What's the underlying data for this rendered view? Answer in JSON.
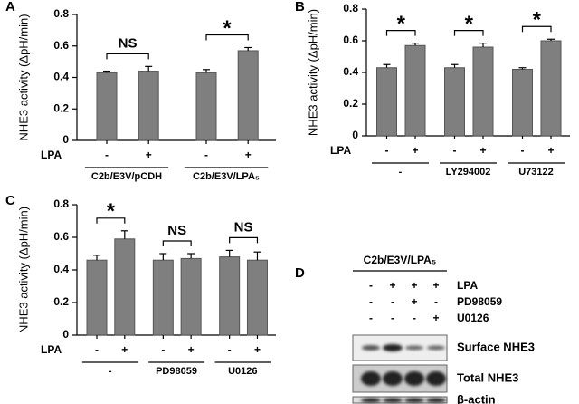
{
  "chart_data": [
    {
      "type": "bar",
      "panel": "A",
      "y_label": "NHE3 activity (ΔpH/min)",
      "row_label": "LPA",
      "color": "#7f7f7f",
      "categories": [
        "-",
        "+",
        "-",
        "+"
      ],
      "groups": [
        "C2b/E3V/pCDH",
        "C2b/E3V/LPA₅"
      ],
      "group_annotations": [
        "NS",
        "*"
      ],
      "values": [
        0.43,
        0.44,
        0.43,
        0.57
      ],
      "errors": [
        0.01,
        0.03,
        0.02,
        0.02
      ],
      "ylim": [
        0,
        0.8
      ],
      "yticks": [
        0,
        0.2,
        0.4,
        0.6,
        0.8
      ]
    },
    {
      "type": "bar",
      "panel": "B",
      "y_label": "NHE3 activity (ΔpH/min)",
      "row_label": "LPA",
      "color": "#7f7f7f",
      "categories": [
        "-",
        "+",
        "-",
        "+",
        "-",
        "+"
      ],
      "groups": [
        "-",
        "LY294002",
        "U73122"
      ],
      "group_annotations": [
        "*",
        "*",
        "*"
      ],
      "values": [
        0.43,
        0.57,
        0.43,
        0.56,
        0.42,
        0.6
      ],
      "errors": [
        0.02,
        0.015,
        0.02,
        0.025,
        0.01,
        0.01
      ],
      "ylim": [
        0,
        0.8
      ],
      "yticks": [
        0,
        0.2,
        0.4,
        0.6,
        0.8
      ]
    },
    {
      "type": "bar",
      "panel": "C",
      "y_label": "NHE3 activity (ΔpH/min)",
      "row_label": "LPA",
      "color": "#7f7f7f",
      "categories": [
        "-",
        "+",
        "-",
        "+",
        "-",
        "+"
      ],
      "groups": [
        "-",
        "PD98059",
        "U0126"
      ],
      "group_annotations": [
        "*",
        "NS",
        "NS"
      ],
      "values": [
        0.46,
        0.59,
        0.46,
        0.47,
        0.48,
        0.46
      ],
      "errors": [
        0.03,
        0.05,
        0.04,
        0.03,
        0.04,
        0.05
      ],
      "ylim": [
        0,
        0.8
      ],
      "yticks": [
        0,
        0.2,
        0.4,
        0.6,
        0.8
      ]
    }
  ],
  "blot": {
    "panel": "D",
    "group": "C2b/E3V/LPA₅",
    "rows": [
      {
        "label": "LPA",
        "signs": [
          "-",
          "+",
          "+",
          "+"
        ]
      },
      {
        "label": "PD98059",
        "signs": [
          "-",
          "-",
          "+",
          "-"
        ]
      },
      {
        "label": "U0126",
        "signs": [
          "-",
          "-",
          "-",
          "+"
        ]
      }
    ],
    "bands": [
      "Surface NHE3",
      "Total NHE3",
      "β-actin"
    ]
  }
}
